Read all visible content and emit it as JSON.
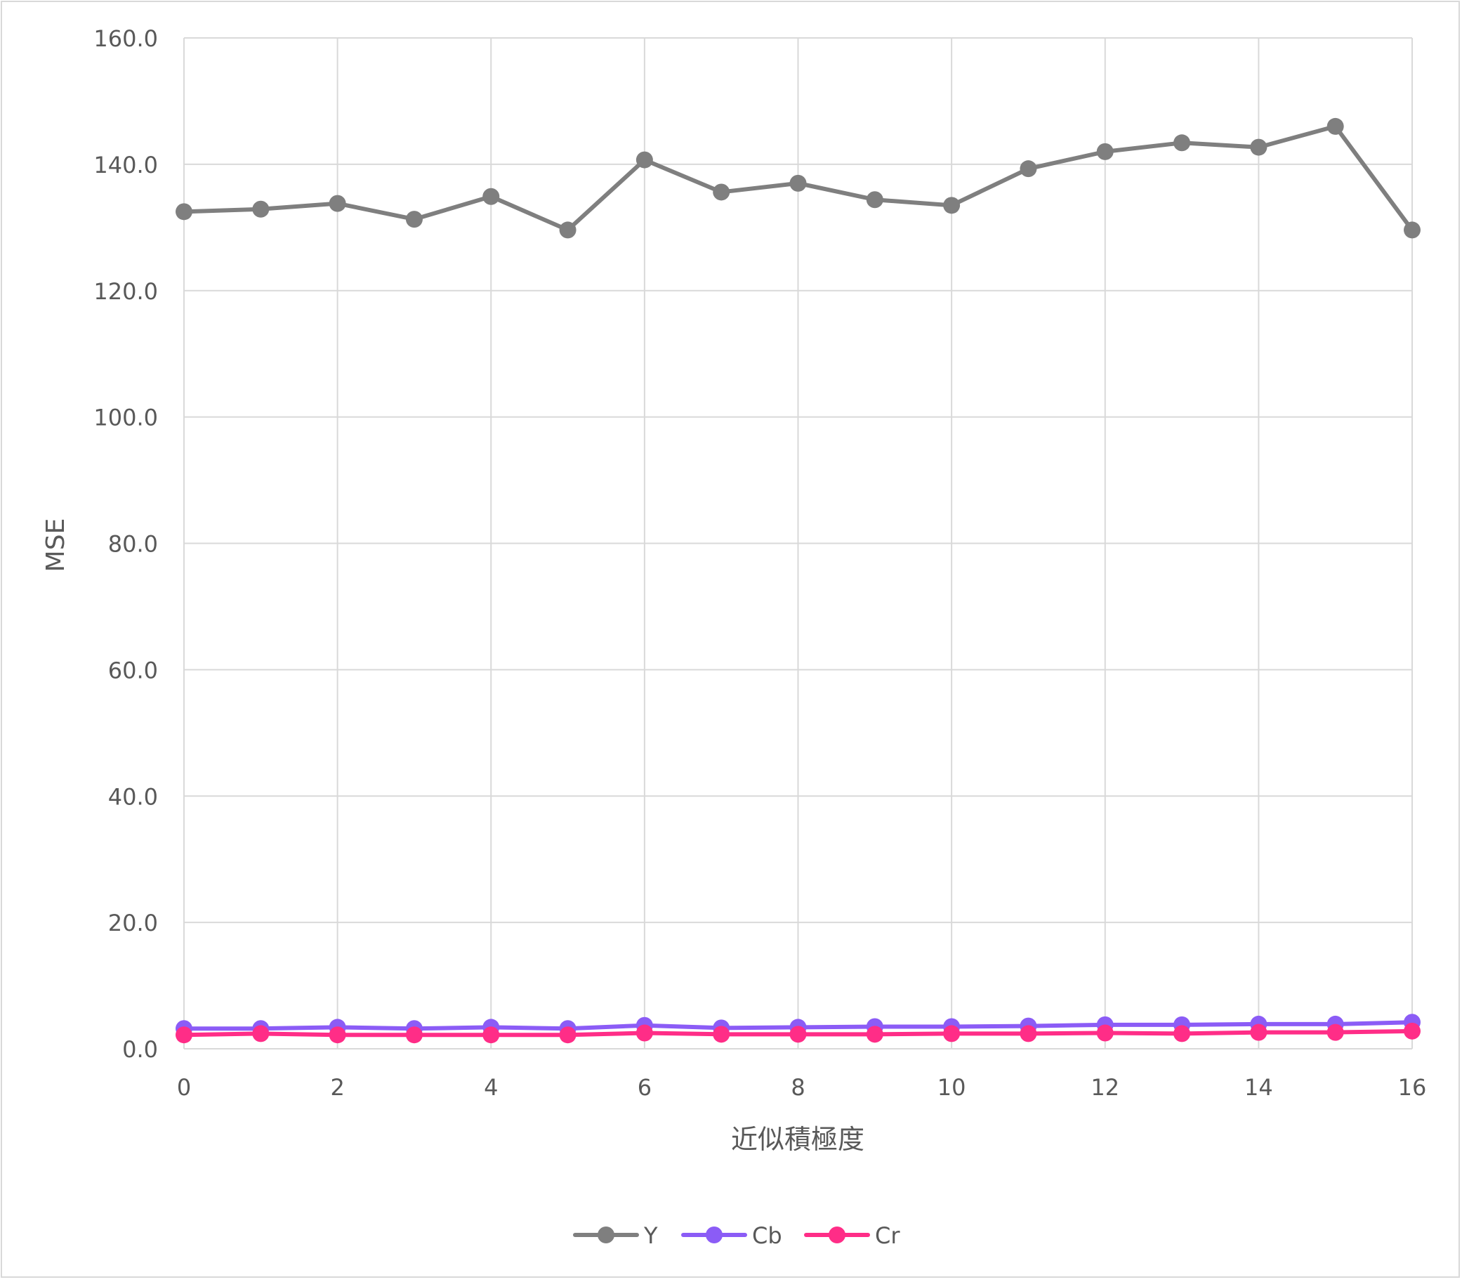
{
  "chart_data": {
    "type": "line",
    "title": "",
    "xlabel": "近似積極度",
    "ylabel": "MSE",
    "x": [
      0,
      1,
      2,
      3,
      4,
      5,
      6,
      7,
      8,
      9,
      10,
      11,
      12,
      13,
      14,
      15,
      16
    ],
    "xlim": [
      0,
      16
    ],
    "ylim": [
      0,
      160
    ],
    "x_ticks": [
      "0",
      "2",
      "4",
      "6",
      "8",
      "10",
      "12",
      "14",
      "16"
    ],
    "x_tick_values": [
      0,
      2,
      4,
      6,
      8,
      10,
      12,
      14,
      16
    ],
    "y_ticks": [
      "0.0",
      "20.0",
      "40.0",
      "60.0",
      "80.0",
      "100.0",
      "120.0",
      "140.0",
      "160.0"
    ],
    "y_tick_values": [
      0,
      20,
      40,
      60,
      80,
      100,
      120,
      140,
      160
    ],
    "grid": true,
    "legend_position": "bottom",
    "series": [
      {
        "name": "Y",
        "color": "#7f7f7f",
        "values": [
          132.5,
          132.9,
          133.8,
          131.3,
          134.9,
          129.6,
          140.7,
          135.6,
          137.0,
          134.4,
          133.5,
          139.3,
          142.0,
          143.4,
          142.7,
          146.0,
          129.6
        ]
      },
      {
        "name": "Cb",
        "color": "#8b5cf6",
        "values": [
          3.2,
          3.2,
          3.4,
          3.2,
          3.4,
          3.2,
          3.7,
          3.3,
          3.4,
          3.5,
          3.5,
          3.6,
          3.8,
          3.8,
          3.9,
          3.9,
          4.2
        ]
      },
      {
        "name": "Cr",
        "color": "#ff2d87",
        "values": [
          2.2,
          2.4,
          2.2,
          2.2,
          2.2,
          2.2,
          2.5,
          2.3,
          2.3,
          2.3,
          2.4,
          2.4,
          2.5,
          2.4,
          2.6,
          2.6,
          2.8
        ]
      }
    ]
  }
}
